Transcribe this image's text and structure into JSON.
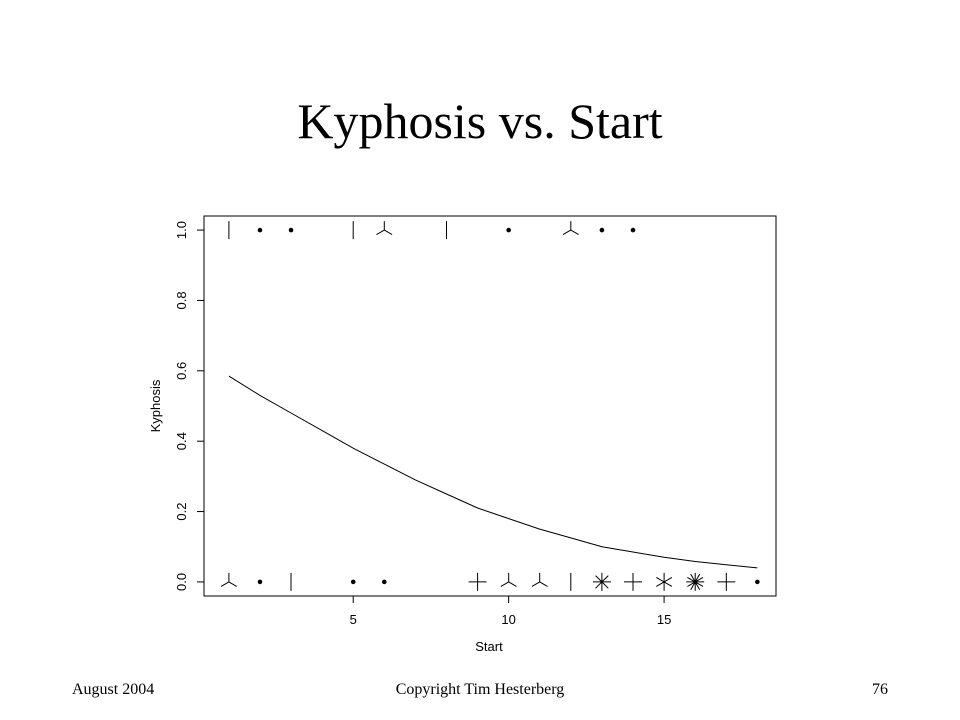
{
  "slide": {
    "title": "Kyphosis vs. Start",
    "footer_left": "August 2004",
    "footer_center": "Copyright Tim Hesterberg",
    "footer_right": "76"
  },
  "chart_data": {
    "type": "scatter",
    "xlabel": "Start",
    "ylabel": "Kyphosis",
    "xlim": [
      0.2,
      18.6
    ],
    "ylim": [
      -0.04,
      1.04
    ],
    "xticks": [
      5,
      10,
      15
    ],
    "yticks": [
      0.0,
      0.2,
      0.4,
      0.6,
      0.8,
      1.0
    ],
    "ytick_labels": [
      "0.0",
      "0.2",
      "0.4",
      "0.6",
      "0.8",
      "1.0"
    ],
    "grid": false,
    "points_note_symbol_rays": "sunflower plot: number of overplotted observations per position",
    "points": [
      {
        "x": 1,
        "y": 1,
        "n": 2
      },
      {
        "x": 2,
        "y": 1,
        "n": 1
      },
      {
        "x": 3,
        "y": 1,
        "n": 1
      },
      {
        "x": 5,
        "y": 1,
        "n": 2
      },
      {
        "x": 6,
        "y": 1,
        "n": 3
      },
      {
        "x": 8,
        "y": 1,
        "n": 2
      },
      {
        "x": 10,
        "y": 1,
        "n": 1
      },
      {
        "x": 12,
        "y": 1,
        "n": 3
      },
      {
        "x": 13,
        "y": 1,
        "n": 1
      },
      {
        "x": 14,
        "y": 1,
        "n": 1
      },
      {
        "x": 1,
        "y": 0,
        "n": 3
      },
      {
        "x": 2,
        "y": 0,
        "n": 1
      },
      {
        "x": 3,
        "y": 0,
        "n": 2
      },
      {
        "x": 5,
        "y": 0,
        "n": 1
      },
      {
        "x": 6,
        "y": 0,
        "n": 1
      },
      {
        "x": 9,
        "y": 0,
        "n": 4
      },
      {
        "x": 10,
        "y": 0,
        "n": 3
      },
      {
        "x": 11,
        "y": 0,
        "n": 3
      },
      {
        "x": 12,
        "y": 0,
        "n": 2
      },
      {
        "x": 13,
        "y": 0,
        "n": 8
      },
      {
        "x": 14,
        "y": 0,
        "n": 4
      },
      {
        "x": 15,
        "y": 0,
        "n": 6
      },
      {
        "x": 16,
        "y": 0,
        "n": 12
      },
      {
        "x": 17,
        "y": 0,
        "n": 4
      },
      {
        "x": 18,
        "y": 0,
        "n": 1
      }
    ],
    "fit_line": {
      "x": [
        1,
        2,
        3,
        4,
        5,
        6,
        7,
        8,
        9,
        10,
        11,
        12,
        13,
        14,
        15,
        16,
        17,
        18
      ],
      "y": [
        0.585,
        0.53,
        0.48,
        0.43,
        0.38,
        0.335,
        0.29,
        0.25,
        0.21,
        0.18,
        0.15,
        0.125,
        0.1,
        0.085,
        0.07,
        0.058,
        0.049,
        0.04
      ]
    }
  }
}
